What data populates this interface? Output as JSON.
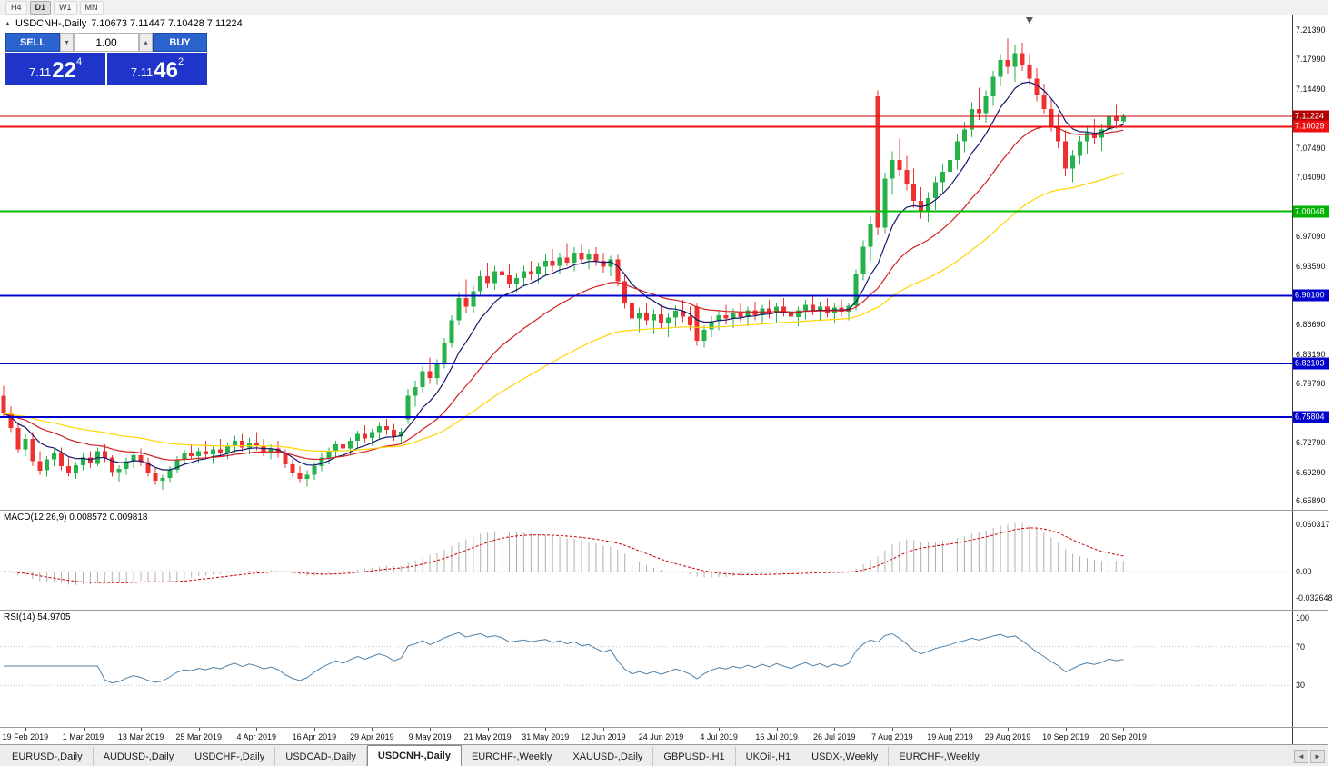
{
  "toolbar": {
    "timeframes": [
      "H4",
      "D1",
      "W1",
      "MN"
    ],
    "active": "D1"
  },
  "chart": {
    "collapse_icon": "▲",
    "title": "USDCNH-,Daily",
    "ohlc": "7.10673 7.11447 7.10428 7.11224"
  },
  "one_click": {
    "sell_label": "SELL",
    "buy_label": "BUY",
    "volume": "1.00",
    "spin_down_icon": "▾",
    "spin_up_icon": "▴",
    "sell_price_main": "7.11",
    "sell_price_big": "22",
    "sell_price_sup": "4",
    "buy_price_main": "7.11",
    "buy_price_big": "46",
    "buy_price_sup": "2"
  },
  "price_axis": {
    "ticks": [
      {
        "label": "7.21390",
        "price": 7.2139
      },
      {
        "label": "7.17990",
        "price": 7.1799
      },
      {
        "label": "7.14490",
        "price": 7.1449
      },
      {
        "label": "7.07490",
        "price": 7.0749
      },
      {
        "label": "7.04090",
        "price": 7.0409
      },
      {
        "label": "6.97090",
        "price": 6.9709
      },
      {
        "label": "6.93590",
        "price": 6.9359
      },
      {
        "label": "6.86690",
        "price": 6.8669
      },
      {
        "label": "6.83190",
        "price": 6.8319
      },
      {
        "label": "6.79790",
        "price": 6.7979
      },
      {
        "label": "6.72790",
        "price": 6.7279
      },
      {
        "label": "6.69290",
        "price": 6.6929
      },
      {
        "label": "6.65890",
        "price": 6.6589
      }
    ],
    "badges": [
      {
        "label": "7.11224",
        "price": 7.11224,
        "color": "#b30000"
      },
      {
        "label": "7.10029",
        "price": 7.10029,
        "color": "#ee1111"
      },
      {
        "label": "7.00048",
        "price": 7.00048,
        "color": "#00b300"
      },
      {
        "label": "6.90100",
        "price": 6.901,
        "color": "#0000cc"
      },
      {
        "label": "6.82103",
        "price": 6.82103,
        "color": "#0000cc"
      },
      {
        "label": "6.75804",
        "price": 6.75804,
        "color": "#0000cc"
      }
    ]
  },
  "hlines": [
    {
      "price": 7.11224,
      "color": "#cc0000",
      "width": 1
    },
    {
      "price": 7.10029,
      "color": "#ee1111",
      "width": 2
    },
    {
      "price": 7.00048,
      "color": "#00bb00",
      "width": 2
    },
    {
      "price": 6.901,
      "color": "#0000cc",
      "width": 2
    },
    {
      "price": 6.82103,
      "color": "#0000cc",
      "width": 2
    },
    {
      "price": 6.75804,
      "color": "#0000cc",
      "width": 2
    }
  ],
  "macd": {
    "label": "MACD(12,26,9) 0.008572 0.009818",
    "range": [
      -0.0425,
      0.072
    ],
    "axis": [
      {
        "label": "0.060317",
        "value": 0.060317
      },
      {
        "label": "0.00",
        "value": 0
      },
      {
        "label": "-0.032648",
        "value": -0.032648
      }
    ]
  },
  "rsi": {
    "label": "RSI(14) 54.9705",
    "levels": [
      70,
      30
    ],
    "axis": [
      {
        "label": "100",
        "value": 100
      },
      {
        "label": "70",
        "value": 70
      },
      {
        "label": "30",
        "value": 30
      }
    ]
  },
  "x_axis": {
    "labels": [
      {
        "label": "19 Feb 2019",
        "i": 3
      },
      {
        "label": "1 Mar 2019",
        "i": 11
      },
      {
        "label": "13 Mar 2019",
        "i": 19
      },
      {
        "label": "25 Mar 2019",
        "i": 27
      },
      {
        "label": "4 Apr 2019",
        "i": 35
      },
      {
        "label": "16 Apr 2019",
        "i": 43
      },
      {
        "label": "29 Apr 2019",
        "i": 51
      },
      {
        "label": "9 May 2019",
        "i": 59
      },
      {
        "label": "21 May 2019",
        "i": 67
      },
      {
        "label": "31 May 2019",
        "i": 75
      },
      {
        "label": "12 Jun 2019",
        "i": 83
      },
      {
        "label": "24 Jun 2019",
        "i": 91
      },
      {
        "label": "4 Jul 2019",
        "i": 99
      },
      {
        "label": "16 Jul 2019",
        "i": 107
      },
      {
        "label": "26 Jul 2019",
        "i": 115
      },
      {
        "label": "7 Aug 2019",
        "i": 123
      },
      {
        "label": "19 Aug 2019",
        "i": 131
      },
      {
        "label": "29 Aug 2019",
        "i": 139
      },
      {
        "label": "10 Sep 2019",
        "i": 147
      },
      {
        "label": "20 Sep 2019",
        "i": 155
      }
    ]
  },
  "tabs": {
    "items": [
      "EURUSD-,Daily",
      "AUDUSD-,Daily",
      "USDCHF-,Daily",
      "USDCAD-,Daily",
      "USDCNH-,Daily",
      "EURCHF-,Weekly",
      "XAUUSD-,Daily",
      "GBPUSD-,H1",
      "UKOil-,H1",
      "USDX-,Weekly",
      "EURCHF-,Weekly"
    ],
    "active_index": 4,
    "scroll_left_icon": "◄",
    "scroll_right_icon": "►"
  },
  "colors": {
    "up": "#26b24b",
    "down": "#ef3030",
    "macd_hist": "#b0b0b0",
    "macd_signal": "#cc0000",
    "rsi": "#4f81a8",
    "rsi_levels": "#c6c6c6"
  },
  "chart_data": {
    "type": "candlestick",
    "symbol": "USDCNH-",
    "timeframe": "Daily",
    "price_range": [
      6.654,
      7.226
    ],
    "shift_marker_index": 142,
    "ma": [
      {
        "period": 8,
        "color": "#16166b"
      },
      {
        "period": 21,
        "color": "#d02020"
      },
      {
        "period": 50,
        "color": "#ffd400"
      }
    ],
    "candles": [
      [
        6.783,
        6.795,
        6.758,
        6.762
      ],
      [
        6.762,
        6.771,
        6.74,
        6.745
      ],
      [
        6.745,
        6.752,
        6.715,
        6.72
      ],
      [
        6.72,
        6.738,
        6.712,
        6.732
      ],
      [
        6.732,
        6.74,
        6.7,
        6.706
      ],
      [
        6.706,
        6.718,
        6.69,
        6.695
      ],
      [
        6.695,
        6.712,
        6.688,
        6.708
      ],
      [
        6.708,
        6.72,
        6.7,
        6.715
      ],
      [
        6.715,
        6.722,
        6.695,
        6.7
      ],
      [
        6.7,
        6.71,
        6.688,
        6.692
      ],
      [
        6.692,
        6.705,
        6.685,
        6.701
      ],
      [
        6.701,
        6.715,
        6.695,
        6.71
      ],
      [
        6.71,
        6.718,
        6.698,
        6.703
      ],
      [
        6.703,
        6.722,
        6.7,
        6.718
      ],
      [
        6.718,
        6.726,
        6.705,
        6.71
      ],
      [
        6.71,
        6.713,
        6.688,
        6.693
      ],
      [
        6.693,
        6.701,
        6.682,
        6.697
      ],
      [
        6.697,
        6.71,
        6.69,
        6.706
      ],
      [
        6.706,
        6.718,
        6.698,
        6.713
      ],
      [
        6.713,
        6.721,
        6.7,
        6.705
      ],
      [
        6.705,
        6.71,
        6.688,
        6.692
      ],
      [
        6.692,
        6.698,
        6.678,
        6.683
      ],
      [
        6.683,
        6.69,
        6.672,
        6.686
      ],
      [
        6.686,
        6.7,
        6.68,
        6.696
      ],
      [
        6.696,
        6.712,
        6.692,
        6.708
      ],
      [
        6.708,
        6.72,
        6.702,
        6.715
      ],
      [
        6.715,
        6.726,
        6.708,
        6.712
      ],
      [
        6.712,
        6.722,
        6.704,
        6.718
      ],
      [
        6.718,
        6.73,
        6.71,
        6.714
      ],
      [
        6.714,
        6.724,
        6.703,
        6.72
      ],
      [
        6.72,
        6.732,
        6.712,
        6.716
      ],
      [
        6.716,
        6.728,
        6.708,
        6.724
      ],
      [
        6.724,
        6.736,
        6.716,
        6.73
      ],
      [
        6.73,
        6.738,
        6.718,
        6.722
      ],
      [
        6.722,
        6.734,
        6.714,
        6.728
      ],
      [
        6.728,
        6.74,
        6.719,
        6.724
      ],
      [
        6.724,
        6.732,
        6.712,
        6.717
      ],
      [
        6.717,
        6.726,
        6.708,
        6.721
      ],
      [
        6.721,
        6.73,
        6.71,
        6.715
      ],
      [
        6.715,
        6.72,
        6.698,
        6.702
      ],
      [
        6.702,
        6.708,
        6.688,
        6.692
      ],
      [
        6.692,
        6.7,
        6.68,
        6.685
      ],
      [
        6.685,
        6.695,
        6.676,
        6.69
      ],
      [
        6.69,
        6.705,
        6.684,
        6.7
      ],
      [
        6.7,
        6.715,
        6.694,
        6.71
      ],
      [
        6.71,
        6.722,
        6.702,
        6.718
      ],
      [
        6.718,
        6.73,
        6.71,
        6.726
      ],
      [
        6.726,
        6.736,
        6.716,
        6.721
      ],
      [
        6.721,
        6.734,
        6.713,
        6.73
      ],
      [
        6.73,
        6.742,
        6.722,
        6.738
      ],
      [
        6.738,
        6.748,
        6.727,
        6.733
      ],
      [
        6.733,
        6.744,
        6.724,
        6.74
      ],
      [
        6.74,
        6.752,
        6.732,
        6.747
      ],
      [
        6.747,
        6.756,
        6.737,
        6.743
      ],
      [
        6.743,
        6.75,
        6.73,
        6.735
      ],
      [
        6.735,
        6.745,
        6.726,
        6.741
      ],
      [
        6.755,
        6.791,
        6.75,
        6.783
      ],
      [
        6.783,
        6.801,
        6.77,
        6.793
      ],
      [
        6.793,
        6.818,
        6.786,
        6.812
      ],
      [
        6.812,
        6.828,
        6.797,
        6.804
      ],
      [
        6.804,
        6.826,
        6.796,
        6.821
      ],
      [
        6.821,
        6.851,
        6.815,
        6.846
      ],
      [
        6.846,
        6.878,
        6.84,
        6.872
      ],
      [
        6.872,
        6.905,
        6.866,
        6.898
      ],
      [
        6.898,
        6.92,
        6.88,
        6.888
      ],
      [
        6.888,
        6.912,
        6.881,
        6.906
      ],
      [
        6.906,
        6.931,
        6.9,
        6.924
      ],
      [
        6.924,
        6.94,
        6.91,
        6.916
      ],
      [
        6.916,
        6.936,
        6.908,
        6.93
      ],
      [
        6.93,
        6.945,
        6.918,
        6.925
      ],
      [
        6.925,
        6.938,
        6.91,
        6.915
      ],
      [
        6.915,
        6.928,
        6.905,
        6.922
      ],
      [
        6.922,
        6.936,
        6.912,
        6.93
      ],
      [
        6.93,
        6.942,
        6.919,
        6.926
      ],
      [
        6.926,
        6.94,
        6.916,
        6.935
      ],
      [
        6.935,
        6.95,
        6.925,
        6.942
      ],
      [
        6.942,
        6.956,
        6.93,
        6.936
      ],
      [
        6.936,
        6.952,
        6.926,
        6.946
      ],
      [
        6.946,
        6.963,
        6.936,
        6.94
      ],
      [
        6.94,
        6.958,
        6.93,
        6.952
      ],
      [
        6.952,
        6.961,
        6.938,
        6.944
      ],
      [
        6.944,
        6.956,
        6.932,
        6.95
      ],
      [
        6.95,
        6.958,
        6.936,
        6.942
      ],
      [
        6.942,
        6.952,
        6.928,
        6.935
      ],
      [
        6.935,
        6.948,
        6.924,
        6.944
      ],
      [
        6.944,
        6.949,
        6.912,
        6.918
      ],
      [
        6.918,
        6.926,
        6.886,
        6.892
      ],
      [
        6.892,
        6.904,
        6.868,
        6.874
      ],
      [
        6.874,
        6.887,
        6.858,
        6.881
      ],
      [
        6.881,
        6.893,
        6.866,
        6.872
      ],
      [
        6.872,
        6.885,
        6.856,
        6.879
      ],
      [
        6.879,
        6.89,
        6.862,
        6.868
      ],
      [
        6.868,
        6.881,
        6.852,
        6.875
      ],
      [
        6.875,
        6.889,
        6.864,
        6.883
      ],
      [
        6.883,
        6.896,
        6.87,
        6.876
      ],
      [
        6.876,
        6.888,
        6.86,
        6.866
      ],
      [
        6.888,
        6.892,
        6.842,
        6.848
      ],
      [
        6.848,
        6.866,
        6.84,
        6.861
      ],
      [
        6.861,
        6.877,
        6.852,
        6.871
      ],
      [
        6.871,
        6.884,
        6.86,
        6.878
      ],
      [
        6.878,
        6.89,
        6.867,
        6.874
      ],
      [
        6.874,
        6.886,
        6.863,
        6.881
      ],
      [
        6.881,
        6.893,
        6.87,
        6.876
      ],
      [
        6.876,
        6.888,
        6.865,
        6.884
      ],
      [
        6.884,
        6.894,
        6.872,
        6.878
      ],
      [
        6.878,
        6.89,
        6.867,
        6.886
      ],
      [
        6.886,
        6.896,
        6.874,
        6.88
      ],
      [
        6.88,
        6.892,
        6.869,
        6.888
      ],
      [
        6.888,
        6.898,
        6.876,
        6.882
      ],
      [
        6.882,
        6.892,
        6.87,
        6.876
      ],
      [
        6.876,
        6.888,
        6.865,
        6.884
      ],
      [
        6.884,
        6.896,
        6.873,
        6.89
      ],
      [
        6.89,
        6.9,
        6.878,
        6.883
      ],
      [
        6.883,
        6.894,
        6.871,
        6.888
      ],
      [
        6.888,
        6.898,
        6.875,
        6.881
      ],
      [
        6.881,
        6.892,
        6.869,
        6.887
      ],
      [
        6.887,
        6.897,
        6.876,
        6.882
      ],
      [
        6.882,
        6.893,
        6.872,
        6.889
      ],
      [
        6.889,
        6.932,
        6.884,
        6.926
      ],
      [
        6.926,
        6.966,
        6.919,
        6.959
      ],
      [
        6.959,
        6.994,
        6.941,
        6.986
      ],
      [
        7.136,
        7.143,
        6.972,
        6.981
      ],
      [
        6.981,
        7.046,
        6.975,
        7.039
      ],
      [
        7.039,
        7.071,
        7.02,
        7.061
      ],
      [
        7.061,
        7.086,
        7.041,
        7.049
      ],
      [
        7.049,
        7.066,
        7.025,
        7.033
      ],
      [
        7.033,
        7.051,
        7.005,
        7.013
      ],
      [
        7.013,
        7.029,
        6.992,
        7.001
      ],
      [
        7.001,
        7.023,
        6.988,
        7.016
      ],
      [
        7.016,
        7.041,
        7.002,
        7.035
      ],
      [
        7.035,
        7.056,
        7.021,
        7.047
      ],
      [
        7.047,
        7.069,
        7.035,
        7.061
      ],
      [
        7.061,
        7.091,
        7.05,
        7.083
      ],
      [
        7.083,
        7.106,
        7.07,
        7.097
      ],
      [
        7.097,
        7.129,
        7.088,
        7.121
      ],
      [
        7.121,
        7.146,
        7.108,
        7.116
      ],
      [
        7.116,
        7.143,
        7.105,
        7.136
      ],
      [
        7.136,
        7.166,
        7.125,
        7.159
      ],
      [
        7.159,
        7.186,
        7.148,
        7.179
      ],
      [
        7.179,
        7.204,
        7.163,
        7.171
      ],
      [
        7.171,
        7.197,
        7.153,
        7.187
      ],
      [
        7.187,
        7.199,
        7.166,
        7.173
      ],
      [
        7.173,
        7.186,
        7.15,
        7.157
      ],
      [
        7.157,
        7.169,
        7.13,
        7.137
      ],
      [
        7.137,
        7.151,
        7.115,
        7.121
      ],
      [
        7.121,
        7.133,
        7.095,
        7.101
      ],
      [
        7.101,
        7.116,
        7.075,
        7.083
      ],
      [
        7.083,
        7.096,
        7.042,
        7.051
      ],
      [
        7.051,
        7.073,
        7.035,
        7.066
      ],
      [
        7.066,
        7.089,
        7.055,
        7.083
      ],
      [
        7.083,
        7.099,
        7.068,
        7.093
      ],
      [
        7.093,
        7.109,
        7.08,
        7.087
      ],
      [
        7.087,
        7.103,
        7.072,
        7.097
      ],
      [
        7.097,
        7.119,
        7.088,
        7.113
      ],
      [
        7.113,
        7.126,
        7.098,
        7.107
      ],
      [
        7.10673,
        7.11447,
        7.10428,
        7.11224
      ]
    ]
  }
}
